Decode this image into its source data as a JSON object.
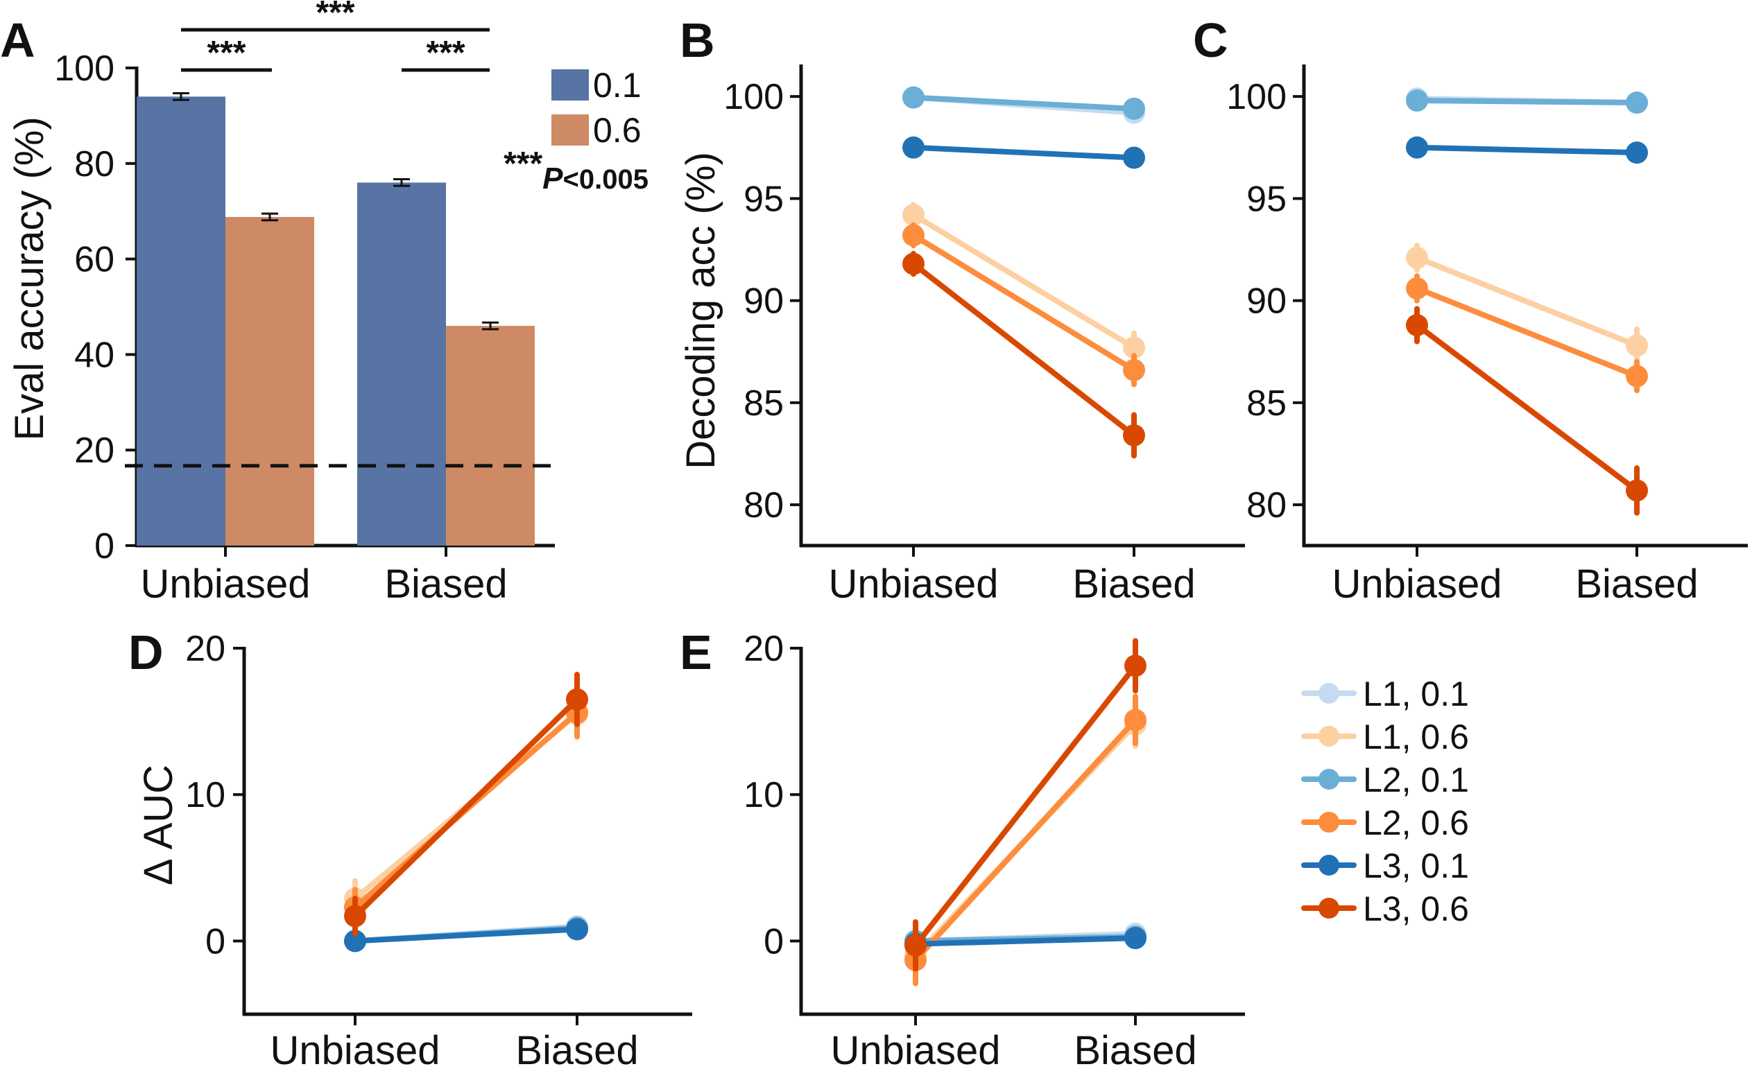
{
  "chart_data": [
    {
      "panel": "A",
      "type": "bar",
      "ylabel": "Eval accuracy (%)",
      "ylim": [
        0,
        100
      ],
      "yticks": [
        0,
        20,
        40,
        60,
        80,
        100
      ],
      "categories": [
        "Unbiased",
        "Biased"
      ],
      "series": [
        {
          "name": "0.1",
          "color": "#5874a4",
          "values": [
            94.0,
            76.0
          ],
          "err": [
            0.7,
            0.7
          ]
        },
        {
          "name": "0.6",
          "color": "#cd8a65",
          "values": [
            68.8,
            46.0
          ],
          "err": [
            0.7,
            0.7
          ]
        }
      ],
      "chance_line": 16.7,
      "significance": [
        {
          "label": "***",
          "from": "Unbiased 0.1",
          "to": "Unbiased 0.6"
        },
        {
          "label": "***",
          "from": "Biased 0.1",
          "to": "Biased 0.6"
        },
        {
          "label": "***",
          "from": "Unbiased 0.1",
          "to": "Biased 0.1"
        }
      ],
      "annotation": {
        "stars": "***",
        "text": "P",
        "threshold": "<0.005"
      }
    },
    {
      "panel": "B",
      "type": "line",
      "ylabel": "Decoding acc (%)",
      "ylim": [
        78,
        101.5
      ],
      "yticks": [
        80,
        85,
        90,
        95,
        100
      ],
      "categories": [
        "Unbiased",
        "Biased"
      ],
      "series": [
        {
          "name": "L1, 0.1",
          "values": [
            99.95,
            99.2
          ],
          "err": [
            0.3,
            0.4
          ]
        },
        {
          "name": "L2, 0.1",
          "values": [
            99.95,
            99.4
          ],
          "err": [
            0.3,
            0.3
          ]
        },
        {
          "name": "L3, 0.1",
          "values": [
            97.5,
            97.0
          ],
          "err": [
            0.2,
            0.2
          ]
        },
        {
          "name": "L1, 0.6",
          "values": [
            94.2,
            87.7
          ],
          "err": [
            0.5,
            0.7
          ]
        },
        {
          "name": "L2, 0.6",
          "values": [
            93.2,
            86.6
          ],
          "err": [
            0.5,
            0.7
          ]
        },
        {
          "name": "L3, 0.6",
          "values": [
            91.8,
            83.4
          ],
          "err": [
            0.5,
            1.0
          ]
        }
      ]
    },
    {
      "panel": "C",
      "type": "line",
      "ylabel": "",
      "ylim": [
        78,
        101.5
      ],
      "yticks": [
        80,
        85,
        90,
        95,
        100
      ],
      "categories": [
        "Unbiased",
        "Biased"
      ],
      "series": [
        {
          "name": "L1, 0.1",
          "values": [
            99.9,
            99.7
          ],
          "err": [
            0.3,
            0.3
          ]
        },
        {
          "name": "L2, 0.1",
          "values": [
            99.8,
            99.7
          ],
          "err": [
            0.3,
            0.3
          ]
        },
        {
          "name": "L3, 0.1",
          "values": [
            97.5,
            97.25
          ],
          "err": [
            0.2,
            0.2
          ]
        },
        {
          "name": "L1, 0.6",
          "values": [
            92.1,
            87.8
          ],
          "err": [
            0.6,
            0.8
          ]
        },
        {
          "name": "L2, 0.6",
          "values": [
            90.6,
            86.3
          ],
          "err": [
            0.6,
            0.7
          ]
        },
        {
          "name": "L3, 0.6",
          "values": [
            88.8,
            80.7
          ],
          "err": [
            0.8,
            1.1
          ]
        }
      ]
    },
    {
      "panel": "D",
      "type": "line",
      "ylabel": "Δ AUC",
      "ylim": [
        -5,
        20
      ],
      "yticks": [
        0,
        10,
        20
      ],
      "categories": [
        "Unbiased",
        "Biased"
      ],
      "series": [
        {
          "name": "L1, 0.1",
          "values": [
            0.0,
            1.0
          ],
          "err": [
            0.3,
            0.5
          ]
        },
        {
          "name": "L2, 0.1",
          "values": [
            0.0,
            0.9
          ],
          "err": [
            0.3,
            0.5
          ]
        },
        {
          "name": "L3, 0.1",
          "values": [
            0.0,
            0.8
          ],
          "err": [
            0.3,
            0.4
          ]
        },
        {
          "name": "L1, 0.6",
          "values": [
            2.9,
            15.5
          ],
          "err": [
            1.2,
            1.6
          ]
        },
        {
          "name": "L2, 0.6",
          "values": [
            2.3,
            15.6
          ],
          "err": [
            1.2,
            1.6
          ]
        },
        {
          "name": "L3, 0.6",
          "values": [
            1.7,
            16.5
          ],
          "err": [
            1.2,
            1.7
          ]
        }
      ]
    },
    {
      "panel": "E",
      "type": "line",
      "ylabel": "",
      "ylim": [
        -5,
        20
      ],
      "yticks": [
        0,
        10,
        20
      ],
      "categories": [
        "Unbiased",
        "Biased"
      ],
      "series": [
        {
          "name": "L1, 0.1",
          "values": [
            0.0,
            0.5
          ],
          "err": [
            0.3,
            0.3
          ]
        },
        {
          "name": "L2, 0.1",
          "values": [
            0.0,
            0.3
          ],
          "err": [
            0.3,
            0.3
          ]
        },
        {
          "name": "L3, 0.1",
          "values": [
            -0.2,
            0.2
          ],
          "err": [
            0.3,
            0.3
          ]
        },
        {
          "name": "L1, 0.6",
          "values": [
            -1.0,
            14.8
          ],
          "err": [
            1.6,
            1.5
          ]
        },
        {
          "name": "L2, 0.6",
          "values": [
            -1.3,
            15.1
          ],
          "err": [
            1.6,
            1.6
          ]
        },
        {
          "name": "L3, 0.6",
          "values": [
            -0.3,
            18.8
          ],
          "err": [
            1.6,
            1.7
          ]
        }
      ]
    }
  ],
  "legend": [
    {
      "label": "L1, 0.1",
      "color": "#c6dbef"
    },
    {
      "label": "L1, 0.6",
      "color": "#fdd0a2"
    },
    {
      "label": "L2, 0.1",
      "color": "#6baed6"
    },
    {
      "label": "L2, 0.6",
      "color": "#fd8d3c"
    },
    {
      "label": "L3, 0.1",
      "color": "#2171b5"
    },
    {
      "label": "L3, 0.6",
      "color": "#d94801"
    }
  ],
  "series_colors": {
    "L1, 0.1": "#c6dbef",
    "L1, 0.6": "#fdd0a2",
    "L2, 0.1": "#6baed6",
    "L2, 0.6": "#fd8d3c",
    "L3, 0.1": "#2171b5",
    "L3, 0.6": "#d94801"
  }
}
